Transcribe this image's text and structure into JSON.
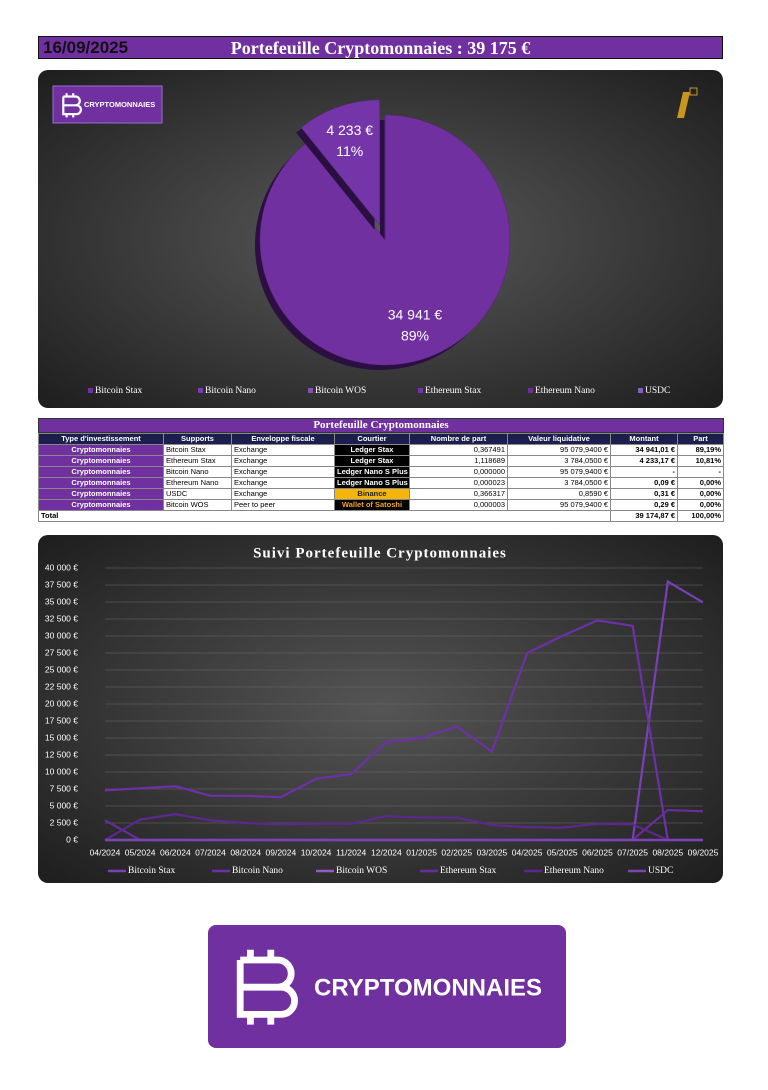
{
  "header": {
    "date": "16/09/2025",
    "title": "Portefeuille Cryptomonnaies : 39 175 €"
  },
  "logo": {
    "text": "CRYPTOMONNAIES"
  },
  "chart_data": [
    {
      "type": "pie",
      "categories": [
        "Bitcoin Stax",
        "Bitcoin Nano",
        "Bitcoin WOS",
        "Ethereum Stax",
        "Ethereum Nano",
        "USDC"
      ],
      "values": [
        34941.01,
        0,
        0.29,
        4233.17,
        0.09,
        0.31
      ],
      "value_labels": [
        "34 941 €",
        null,
        null,
        "4 233 €",
        null,
        null
      ],
      "percent_labels": [
        "89%",
        null,
        null,
        "11%",
        null,
        null
      ],
      "colors": [
        "#7030a0",
        "#7a3cb0",
        "#8450b8",
        "#7435a8",
        "#6c2f9a",
        "#8a5cc0"
      ],
      "legend": "bottom"
    },
    {
      "type": "line",
      "title": "Suivi Portefeuille Cryptomonnaies",
      "categories": [
        "04/2024",
        "05/2024",
        "06/2024",
        "07/2024",
        "08/2024",
        "09/2024",
        "10/2024",
        "11/2024",
        "12/2024",
        "01/2025",
        "02/2025",
        "03/2025",
        "04/2025",
        "05/2025",
        "06/2025",
        "07/2025",
        "08/2025",
        "09/2025"
      ],
      "series": [
        {
          "name": "Bitcoin Stax",
          "color": "#7b3fb8",
          "values": [
            0,
            0,
            0,
            0,
            0,
            0,
            0,
            0,
            0,
            0,
            0,
            0,
            0,
            0,
            0,
            0,
            38000,
            34941
          ]
        },
        {
          "name": "Bitcoin Nano",
          "color": "#6e30a8",
          "values": [
            7300,
            7600,
            7900,
            6500,
            6500,
            6300,
            9000,
            9700,
            14400,
            15000,
            16700,
            13000,
            27500,
            30000,
            32300,
            31500,
            0,
            0
          ]
        },
        {
          "name": "Bitcoin WOS",
          "color": "#8d5cc6",
          "values": [
            0,
            0,
            0,
            0,
            0,
            0,
            0,
            0,
            0,
            0,
            0,
            0,
            0,
            0,
            0,
            0,
            0,
            0
          ]
        },
        {
          "name": "Ethereum Stax",
          "color": "#6a2c9c",
          "values": [
            2900,
            0,
            0,
            0,
            0,
            0,
            0,
            0,
            0,
            0,
            0,
            0,
            0,
            0,
            0,
            0,
            4400,
            4233
          ]
        },
        {
          "name": "Ethereum Nano",
          "color": "#5c2890",
          "values": [
            0,
            3000,
            3800,
            2900,
            2500,
            2300,
            2400,
            2400,
            3500,
            3300,
            3300,
            2200,
            1900,
            1800,
            2400,
            2300,
            0,
            0
          ]
        },
        {
          "name": "USDC",
          "color": "#7a45b0",
          "values": [
            0,
            0,
            0,
            0,
            0,
            0,
            0,
            0,
            0,
            0,
            0,
            0,
            0,
            0,
            0,
            0,
            0,
            0
          ]
        }
      ],
      "ylim": [
        0,
        40000
      ],
      "yticks": [
        {
          "value": 0,
          "label": "0 €"
        },
        {
          "value": 2500,
          "label": "2 500 €"
        },
        {
          "value": 5000,
          "label": "5 000 €"
        },
        {
          "value": 7500,
          "label": "7 500 €"
        },
        {
          "value": 10000,
          "label": "10 000 €"
        },
        {
          "value": 12500,
          "label": "12 500 €"
        },
        {
          "value": 15000,
          "label": "15 000 €"
        },
        {
          "value": 17500,
          "label": "17 500 €"
        },
        {
          "value": 20000,
          "label": "20 000 €"
        },
        {
          "value": 22500,
          "label": "22 500 €"
        },
        {
          "value": 25000,
          "label": "25 000 €"
        },
        {
          "value": 27500,
          "label": "27 500 €"
        },
        {
          "value": 30000,
          "label": "30 000 €"
        },
        {
          "value": 32500,
          "label": "32 500 €"
        },
        {
          "value": 35000,
          "label": "35 000 €"
        },
        {
          "value": 37500,
          "label": "37 500 €"
        },
        {
          "value": 40000,
          "label": "40 000 €"
        }
      ],
      "grid": true,
      "legend": "bottom"
    }
  ],
  "table": {
    "title": "Portefeuille Cryptomonnaies",
    "columns": [
      "Type d'investissement",
      "Supports",
      "Enveloppe fiscale",
      "Courtier",
      "Nombre de part",
      "Valeur liquidative",
      "Montant",
      "Part"
    ],
    "rows": [
      [
        "Cryptomonnaies",
        "Bitcoin Stax",
        "Exchange",
        "Ledger Stax",
        "0,367491",
        "95 079,9400 €",
        "34 941,01 €",
        "89,19%"
      ],
      [
        "Cryptomonnaies",
        "Ethereum Stax",
        "Exchange",
        "Ledger Stax",
        "1,118689",
        "3 784,0500 €",
        "4 233,17 €",
        "10,81%"
      ],
      [
        "Cryptomonnaies",
        "Bitcoin Nano",
        "Exchange",
        "Ledger Nano S Plus",
        "0,000000",
        "95 079,9400 €",
        "-",
        "-"
      ],
      [
        "Cryptomonnaies",
        "Ethereum Nano",
        "Exchange",
        "Ledger Nano S Plus",
        "0,000023",
        "3 784,0500 €",
        "0,09 €",
        "0,00%"
      ],
      [
        "Cryptomonnaies",
        "USDC",
        "Exchange",
        "Binance",
        "0,366317",
        "0,8590 €",
        "0,31 €",
        "0,00%"
      ],
      [
        "Cryptomonnaies",
        "Bitcoin WOS",
        "Peer to peer",
        "Wallet of Satoshi",
        "0,000003",
        "95 079,9400 €",
        "0,29 €",
        "0,00%"
      ]
    ],
    "total": [
      "Total",
      "39 174,87 €",
      "100,00%"
    ]
  }
}
